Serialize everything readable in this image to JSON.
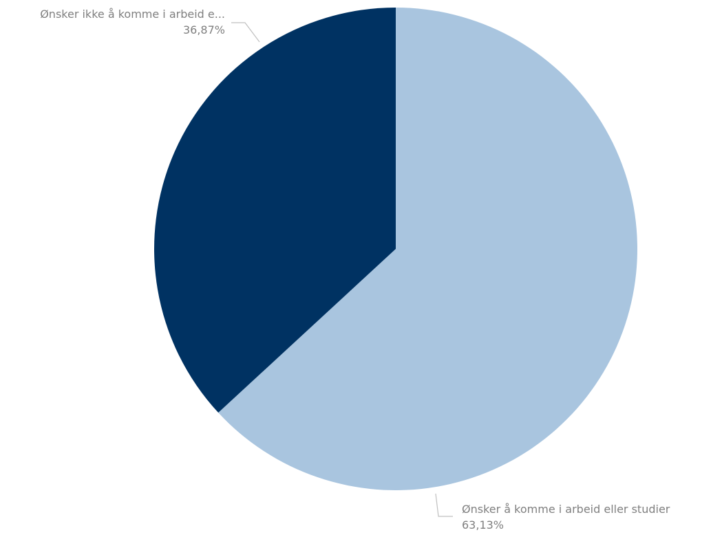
{
  "chart_data": {
    "type": "pie",
    "slices": [
      {
        "label": "Ønsker å komme i arbeid eller studier",
        "value": 63.13,
        "value_label": "63,13%",
        "color": "#a9c5df"
      },
      {
        "label": "Ønsker ikke å komme i arbeid e...",
        "value": 36.87,
        "value_label": "36,87%",
        "color": "#003262"
      }
    ],
    "start_angle": "12 o'clock",
    "direction": "clockwise",
    "label_color": "#7f7f7f",
    "leader_line_color": "#bfbfbf",
    "legend": "none"
  }
}
